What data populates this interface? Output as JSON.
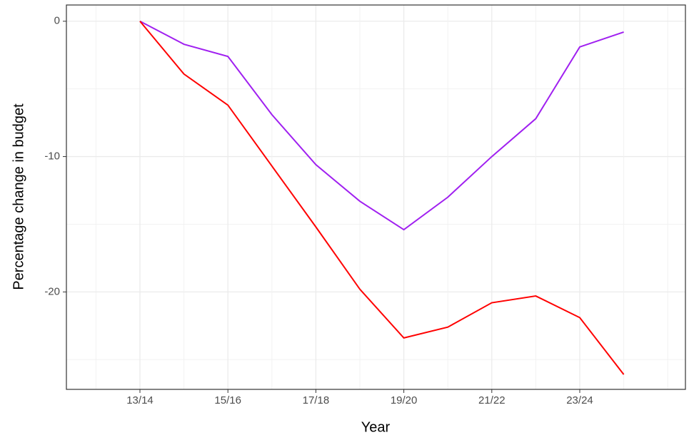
{
  "chart_data": {
    "type": "line",
    "x_label": "Year",
    "y_label": "Percentage change in budget",
    "categories": [
      "13/14",
      null,
      "15/16",
      null,
      "17/18",
      null,
      "19/20",
      null,
      "21/22",
      null,
      "23/24",
      null
    ],
    "series": [
      {
        "color": "#a020f0",
        "values": [
          0,
          -1.7,
          -2.6,
          -6.9,
          -10.6,
          -13.3,
          -15.4,
          -13.0,
          -10.0,
          -7.2,
          -1.9,
          -0.8
        ]
      },
      {
        "color": "#ff0000",
        "values": [
          0,
          -3.9,
          -6.2,
          -10.7,
          -15.2,
          -19.8,
          -23.4,
          -22.6,
          -20.8,
          -20.3,
          -21.9,
          -26.1
        ]
      }
    ],
    "ylim": [
      -27.2,
      1.2
    ],
    "yticks": [
      0,
      -10,
      -20
    ],
    "grid": true
  }
}
